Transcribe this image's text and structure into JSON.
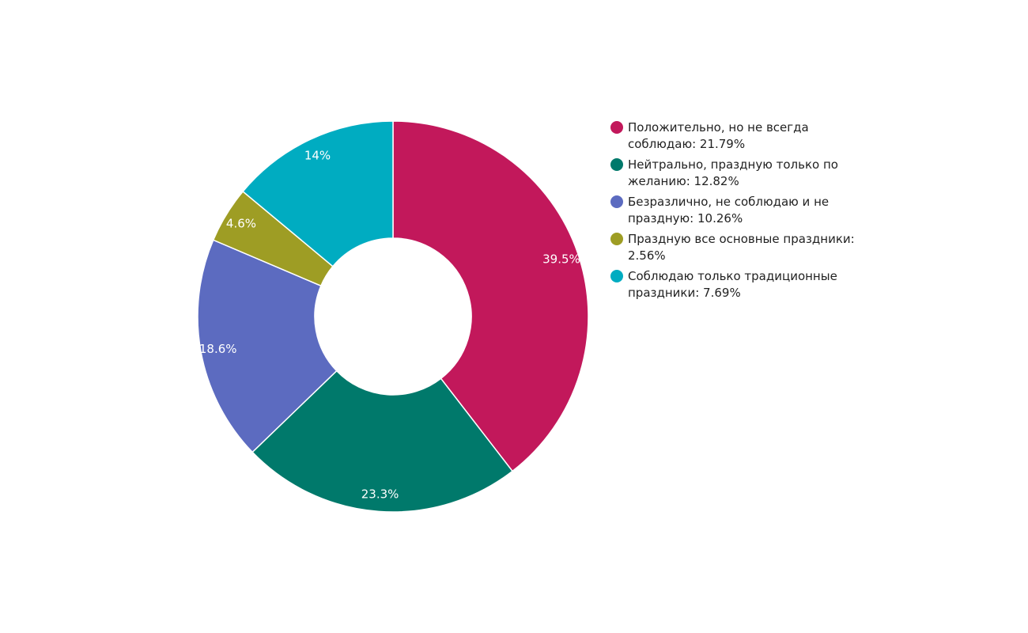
{
  "chart_data": {
    "type": "pie",
    "variant": "donut",
    "slices": [
      {
        "label": "Положительно, но не всегда соблюдаю: 21.79%",
        "value": 21.79,
        "percent_label": "39.5%",
        "color": "#c2185b"
      },
      {
        "label": "Нейтрально, праздную только по желанию: 12.82%",
        "value": 12.82,
        "percent_label": "23.3%",
        "color": "#00796b"
      },
      {
        "label": "Безразлично, не соблюдаю и не праздную: 10.26%",
        "value": 10.26,
        "percent_label": "18.6%",
        "color": "#5c6bc0"
      },
      {
        "label": "Праздную все основные праздники: 2.56%",
        "value": 2.56,
        "percent_label": "4.6%",
        "color": "#9e9d24"
      },
      {
        "label": "Соблюдаю только традиционные праздники: 7.69%",
        "value": 7.69,
        "percent_label": "14%",
        "color": "#00acc1"
      }
    ],
    "legend_position": "right",
    "start_angle": "top",
    "direction": "clockwise"
  }
}
